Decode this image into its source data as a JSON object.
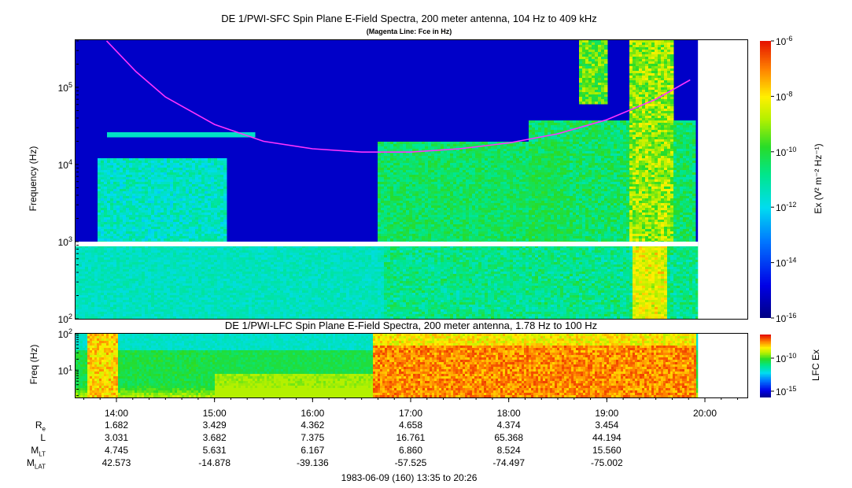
{
  "top_panel": {
    "title": "DE 1/PWI-SFC  Spin Plane E-Field Spectra, 200 meter antenna, 104 Hz to 409 kHz",
    "subtitle": "(Magenta Line: Fce in Hz)",
    "ylabel": "Frequency (Hz)",
    "colorbar_label": "Ex (V² m⁻² Hz⁻¹)"
  },
  "bottom_panel": {
    "title": "DE 1/PWI-LFC  Spin Plane E-Field Spectra, 200 meter antenna, 1.78 Hz to 100 Hz",
    "ylabel": "Freq (Hz)",
    "colorbar_label": "LFC Ex"
  },
  "chart_data": [
    {
      "type": "heatmap",
      "title": "DE 1/PWI-SFC  Spin Plane E-Field Spectra, 200 meter antenna, 104 Hz to 409 kHz",
      "subtitle": "(Magenta Line: Fce in Hz)",
      "xlabel": "",
      "ylabel": "Frequency (Hz)",
      "y_scale": "log",
      "y_range_hz": [
        100,
        409000
      ],
      "y_ticks": [
        {
          "base": "10",
          "exp": "2"
        },
        {
          "base": "10",
          "exp": "3"
        },
        {
          "base": "10",
          "exp": "4"
        },
        {
          "base": "10",
          "exp": "5"
        }
      ],
      "x_range_ut_hours": [
        13.583,
        20.433
      ],
      "data_end_ut_hours": 19.93,
      "colorbar": {
        "label": "Ex (V² m⁻² Hz⁻¹)",
        "scale": "log",
        "range": [
          1e-16,
          1e-06
        ],
        "ticks": [
          {
            "base": "10",
            "exp": "-6"
          },
          {
            "base": "10",
            "exp": "-8"
          },
          {
            "base": "10",
            "exp": "-10"
          },
          {
            "base": "10",
            "exp": "-12"
          },
          {
            "base": "10",
            "exp": "-14"
          },
          {
            "base": "10",
            "exp": "-16"
          }
        ]
      },
      "overlay_line": {
        "color": "#ff33ff",
        "ut_hours": [
          13.9,
          14.2,
          14.5,
          15.0,
          15.5,
          16.0,
          16.5,
          17.0,
          17.5,
          18.0,
          18.5,
          19.0,
          19.5,
          19.85
        ],
        "fce_hz": [
          400000,
          160000,
          75000,
          33000,
          20000,
          16000,
          14500,
          14500,
          16000,
          19000,
          25000,
          38000,
          70000,
          125000
        ]
      }
    },
    {
      "type": "heatmap",
      "title": "DE 1/PWI-LFC  Spin Plane E-Field Spectra, 200 meter antenna, 1.78 Hz to 100 Hz",
      "ylabel": "Freq (Hz)",
      "y_scale": "log",
      "y_range_hz": [
        1.78,
        100
      ],
      "y_ticks": [
        {
          "base": "10",
          "exp": "1"
        },
        {
          "base": "10",
          "exp": "2"
        }
      ],
      "x_range_ut_hours": [
        13.583,
        20.433
      ],
      "data_end_ut_hours": 19.93,
      "x_ticks": [
        "14:00",
        "15:00",
        "16:00",
        "17:00",
        "18:00",
        "19:00",
        "20:00"
      ],
      "colorbar": {
        "label": "LFC Ex",
        "scale": "log",
        "ticks": [
          {
            "base": "10",
            "exp": "-10"
          },
          {
            "base": "10",
            "exp": "-15"
          }
        ]
      }
    }
  ],
  "ephemeris": {
    "rows": [
      {
        "label": "R",
        "sub": "e",
        "values": [
          "1.682",
          "3.429",
          "4.362",
          "4.658",
          "4.374",
          "3.454"
        ]
      },
      {
        "label": "L",
        "sub": "",
        "values": [
          "3.031",
          "3.682",
          "7.375",
          "16.761",
          "65.368",
          "44.194"
        ]
      },
      {
        "label": "M",
        "sub": "LT",
        "values": [
          "4.745",
          "5.631",
          "6.167",
          "6.860",
          "8.524",
          "15.560"
        ]
      },
      {
        "label": "M",
        "sub": "LAT",
        "values": [
          "42.573",
          "-14.878",
          "-39.136",
          "-57.525",
          "-74.497",
          "-75.002"
        ]
      }
    ]
  },
  "footer": "1983-06-09 (160) 13:35 to 20:26"
}
